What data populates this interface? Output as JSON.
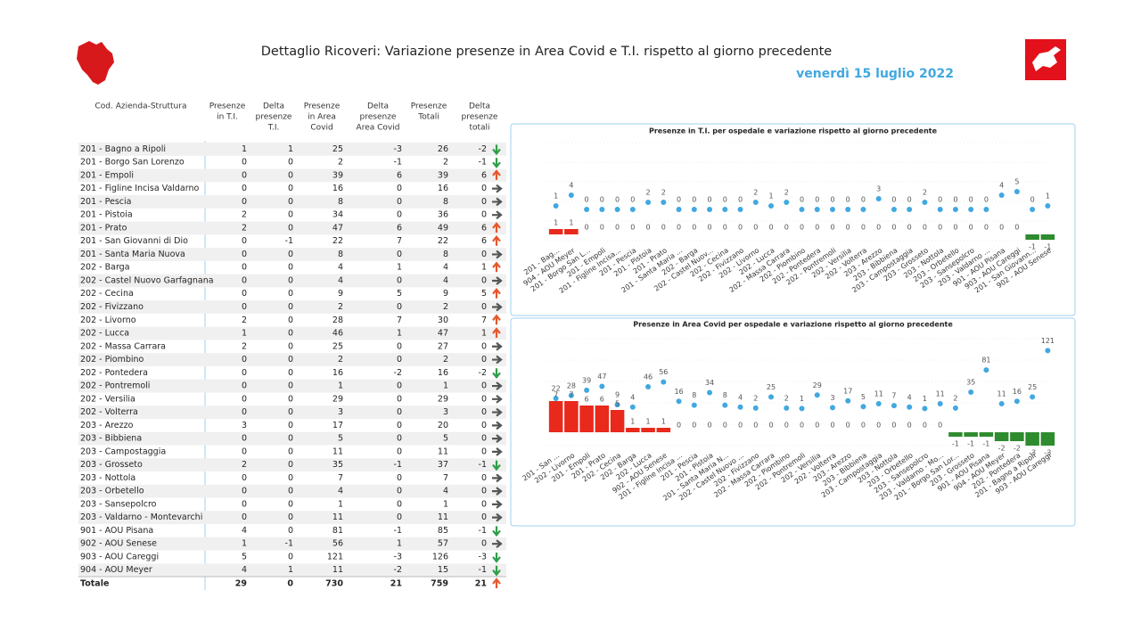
{
  "header": {
    "title": "Dettaglio Ricoveri: Variazione presenze in Area Covid e T.I. rispetto al giorno precedente",
    "date": "venerdì 15 luglio 2022"
  },
  "table": {
    "columns": [
      [
        "Cod. Azienda-Struttura"
      ],
      [
        "Presenze",
        "in T.I."
      ],
      [
        "Delta",
        "presenze",
        "T.I."
      ],
      [
        "Presenze",
        "in Area",
        "Covid"
      ],
      [
        "Delta",
        "presenze",
        "Area Covid"
      ],
      [
        "Presenze",
        "Totali"
      ],
      [
        "Delta",
        "presenze",
        "totali"
      ]
    ],
    "positive_color": "#e8562a",
    "negative_color": "#2e9e48",
    "zero_color": "#555555",
    "rows": [
      [
        "201 - Bagno a Ripoli",
        1,
        1,
        25,
        -3,
        26,
        -2
      ],
      [
        "201 - Borgo San Lorenzo",
        0,
        0,
        2,
        -1,
        2,
        -1
      ],
      [
        "201 - Empoli",
        0,
        0,
        39,
        6,
        39,
        6
      ],
      [
        "201 - Figline Incisa Valdarno",
        0,
        0,
        16,
        0,
        16,
        0
      ],
      [
        "201 - Pescia",
        0,
        0,
        8,
        0,
        8,
        0
      ],
      [
        "201 - Pistoia",
        2,
        0,
        34,
        0,
        36,
        0
      ],
      [
        "201 - Prato",
        2,
        0,
        47,
        6,
        49,
        6
      ],
      [
        "201 - San Giovanni di Dio",
        0,
        -1,
        22,
        7,
        22,
        6
      ],
      [
        "201 - Santa Maria Nuova",
        0,
        0,
        8,
        0,
        8,
        0
      ],
      [
        "202 - Barga",
        0,
        0,
        4,
        1,
        4,
        1
      ],
      [
        "202 - Castel Nuovo Garfagnana",
        0,
        0,
        4,
        0,
        4,
        0
      ],
      [
        "202 - Cecina",
        0,
        0,
        9,
        5,
        9,
        5
      ],
      [
        "202 - Fivizzano",
        0,
        0,
        2,
        0,
        2,
        0
      ],
      [
        "202 - Livorno",
        2,
        0,
        28,
        7,
        30,
        7
      ],
      [
        "202 - Lucca",
        1,
        0,
        46,
        1,
        47,
        1
      ],
      [
        "202 - Massa Carrara",
        2,
        0,
        25,
        0,
        27,
        0
      ],
      [
        "202 - Piombino",
        0,
        0,
        2,
        0,
        2,
        0
      ],
      [
        "202 - Pontedera",
        0,
        0,
        16,
        -2,
        16,
        -2
      ],
      [
        "202 - Pontremoli",
        0,
        0,
        1,
        0,
        1,
        0
      ],
      [
        "202 - Versilia",
        0,
        0,
        29,
        0,
        29,
        0
      ],
      [
        "202 - Volterra",
        0,
        0,
        3,
        0,
        3,
        0
      ],
      [
        "203 - Arezzo",
        3,
        0,
        17,
        0,
        20,
        0
      ],
      [
        "203 - Bibbiena",
        0,
        0,
        5,
        0,
        5,
        0
      ],
      [
        "203 - Campostaggia",
        0,
        0,
        11,
        0,
        11,
        0
      ],
      [
        "203 - Grosseto",
        2,
        0,
        35,
        -1,
        37,
        -1
      ],
      [
        "203 - Nottola",
        0,
        0,
        7,
        0,
        7,
        0
      ],
      [
        "203 - Orbetello",
        0,
        0,
        4,
        0,
        4,
        0
      ],
      [
        "203 - Sansepolcro",
        0,
        0,
        1,
        0,
        1,
        0
      ],
      [
        "203 - Valdarno - Montevarchi",
        0,
        0,
        11,
        0,
        11,
        0
      ],
      [
        "901 - AOU Pisana",
        4,
        0,
        81,
        -1,
        85,
        -1
      ],
      [
        "902 - AOU Senese",
        1,
        -1,
        56,
        1,
        57,
        0
      ],
      [
        "903 - AOU Careggi",
        5,
        0,
        121,
        -3,
        126,
        -3
      ],
      [
        "904 - AOU Meyer",
        4,
        1,
        11,
        -2,
        15,
        -1
      ]
    ],
    "total": [
      "Totale",
      29,
      0,
      730,
      21,
      759,
      21
    ]
  },
  "chart_data": [
    {
      "type": "combo",
      "title": "Presenze in T.I. per ospedale e variazione rispetto al giorno precedente",
      "categories": [
        "201 - Bag...",
        "904 - AOU Meyer",
        "201 - Borgo San L...",
        "201 - Empoli",
        "201 - Figline Incisa...",
        "201 - Pescia",
        "201 - Pistoia",
        "201 - Prato",
        "201 - Santa Maria ...",
        "202 - Barga",
        "202 - Castel Nuov...",
        "202 - Cecina",
        "202 - Fivizzano",
        "202 - Livorno",
        "202 - Lucca",
        "202 - Massa Carrara",
        "202 - Piombino",
        "202 - Pontedera",
        "202 - Pontremoli",
        "202 - Versilia",
        "202 - Volterra",
        "203 - Arezzo",
        "203 - Bibbiena",
        "203 - Campostaggia",
        "203 - Grosseto",
        "203 - Nottola",
        "203 - Orbetello",
        "203 - Sansepolcro",
        "203 - Valdarno ...",
        "901 - AOU Pisana",
        "903 - AOU Careggi",
        "201 - San Giovann...",
        "902 - AOU Senese"
      ],
      "series": [
        {
          "kind": "dot",
          "color": "#41a8e0",
          "values": [
            1,
            4,
            0,
            0,
            0,
            0,
            2,
            2,
            0,
            0,
            0,
            0,
            0,
            2,
            1,
            2,
            0,
            0,
            0,
            0,
            0,
            3,
            0,
            0,
            2,
            0,
            0,
            0,
            0,
            4,
            5,
            0,
            1
          ]
        },
        {
          "kind": "bar",
          "axis": "y2",
          "positive_color": "#e8291c",
          "negative_color": "#2e8b2e",
          "values": [
            1,
            1,
            0,
            0,
            0,
            0,
            0,
            0,
            0,
            0,
            0,
            0,
            0,
            0,
            0,
            0,
            0,
            0,
            0,
            0,
            0,
            0,
            0,
            0,
            0,
            0,
            0,
            0,
            0,
            0,
            0,
            -1,
            -1
          ]
        }
      ],
      "ylim": [
        -10,
        20
      ],
      "y2lim": [
        -2,
        18
      ]
    },
    {
      "type": "combo",
      "title": "Presenze in Area Covid per ospedale e variazione rispetto al giorno precedente",
      "categories": [
        "201 - San ...",
        "202 - Livorno",
        "201 - Empoli",
        "201 - Prato",
        "202 - Cecina",
        "202 - Barga",
        "202 - Lucca",
        "902 - AOU Senese",
        "201 - Figline Incisa ...",
        "201 - Pescia",
        "201 - Pistoia",
        "201 - Santa Maria N...",
        "202 - Castel Nuovo ...",
        "202 - Fivizzano",
        "202 - Massa Carrara",
        "202 - Piombino",
        "202 - Pontremoli",
        "202 - Versilia",
        "202 - Volterra",
        "203 - Arezzo",
        "203 - Bibbiena",
        "203 - Campostaggia",
        "203 - Nottola",
        "203 - Orbetello",
        "203 - Sansepolcro",
        "203 - Valdarno - Mo...",
        "201 - Borgo San Lor...",
        "203 - Grosseto",
        "901 - AOU Pisana",
        "904 - AOU Meyer",
        "202 - Pontedera",
        "201 - Bagno a Ripoli",
        "903 - AOU Careggi"
      ],
      "series": [
        {
          "kind": "dot",
          "color": "#41a8e0",
          "values": [
            22,
            28,
            39,
            47,
            9,
            4,
            46,
            56,
            16,
            8,
            34,
            8,
            4,
            2,
            25,
            2,
            1,
            29,
            3,
            17,
            5,
            11,
            7,
            4,
            1,
            11,
            2,
            35,
            81,
            11,
            16,
            25,
            121
          ]
        },
        {
          "kind": "bar",
          "axis": "y2",
          "positive_color": "#e8291c",
          "negative_color": "#2e8b2e",
          "values": [
            7,
            7,
            6,
            6,
            5,
            1,
            1,
            1,
            0,
            0,
            0,
            0,
            0,
            0,
            0,
            0,
            0,
            0,
            0,
            0,
            0,
            0,
            0,
            0,
            0,
            0,
            -1,
            -1,
            -1,
            -2,
            -2,
            -3,
            -3
          ]
        }
      ],
      "ylim": [
        -85,
        155
      ],
      "y2lim": [
        -4,
        22
      ]
    }
  ]
}
